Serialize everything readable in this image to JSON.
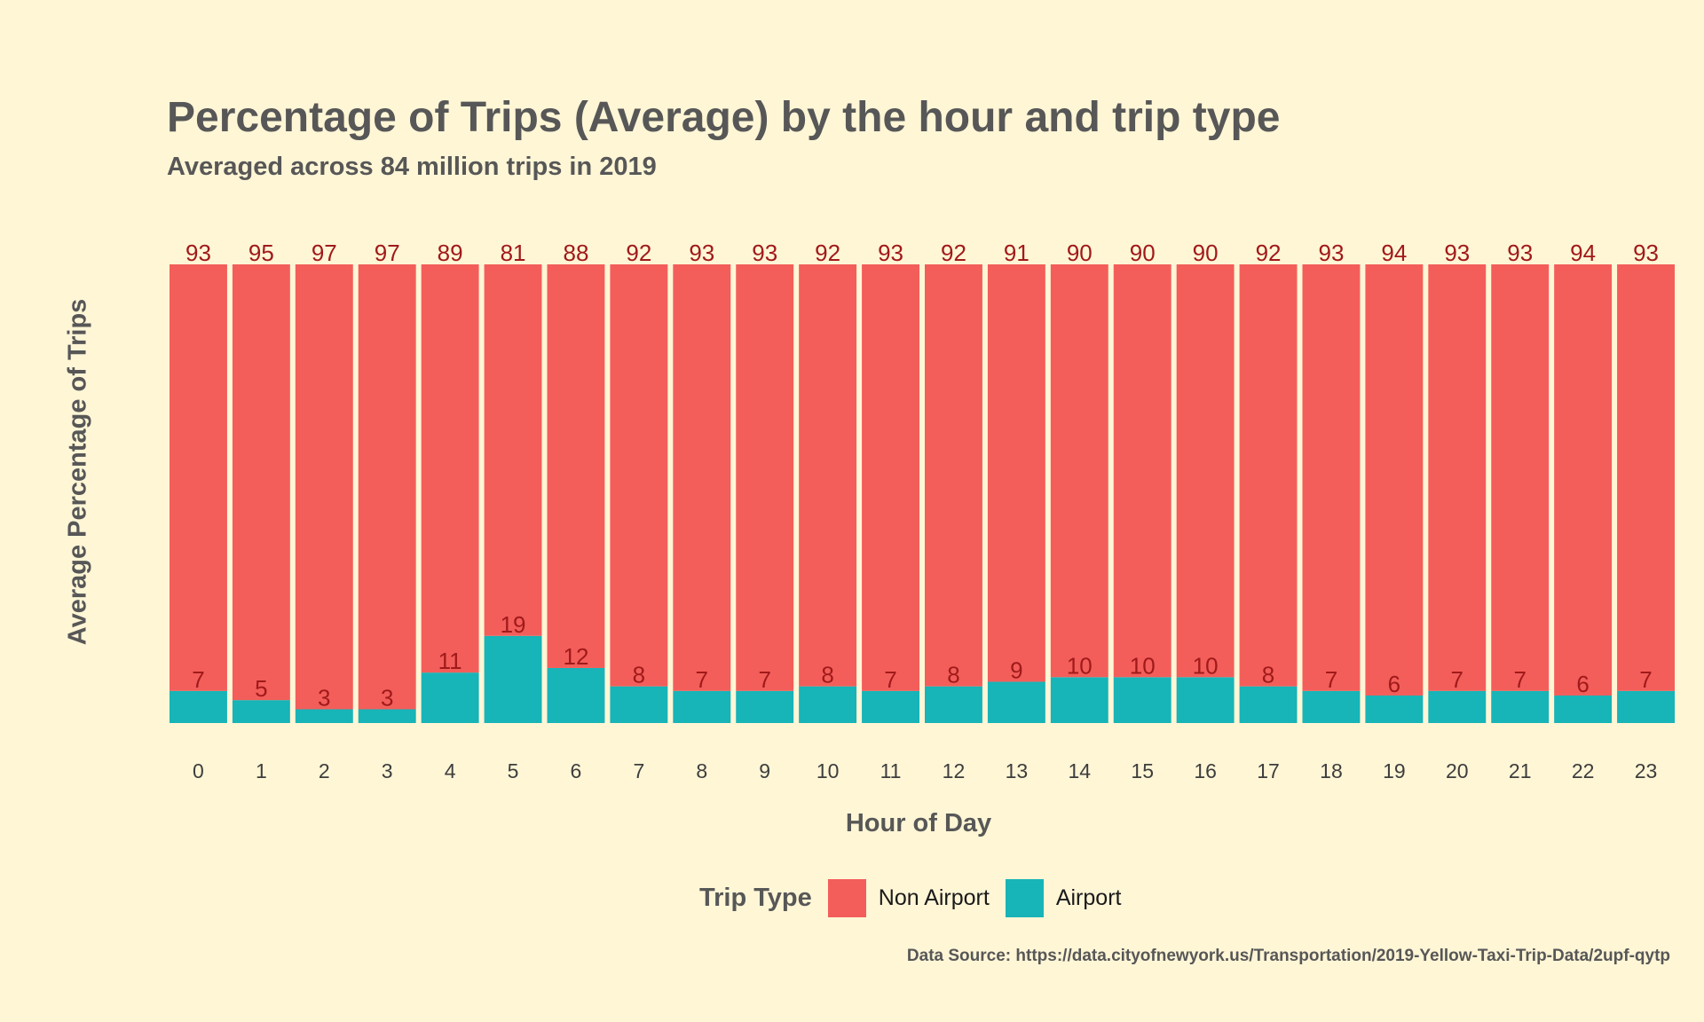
{
  "chart_data": {
    "type": "bar",
    "stacked": true,
    "title": "Percentage of Trips (Average) by the hour and trip type",
    "subtitle": "Averaged across 84 million trips in 2019",
    "xlabel": "Hour of Day",
    "ylabel": "Average Percentage of Trips",
    "ylim": [
      0,
      100
    ],
    "grid": false,
    "categories": [
      "0",
      "1",
      "2",
      "3",
      "4",
      "5",
      "6",
      "7",
      "8",
      "9",
      "10",
      "11",
      "12",
      "13",
      "14",
      "15",
      "16",
      "17",
      "18",
      "19",
      "20",
      "21",
      "22",
      "23"
    ],
    "series": [
      {
        "name": "Non Airport",
        "color": "#f35e5a",
        "values": [
          93,
          95,
          97,
          97,
          89,
          81,
          88,
          92,
          93,
          93,
          92,
          93,
          92,
          91,
          90,
          90,
          90,
          92,
          93,
          94,
          93,
          93,
          94,
          93
        ]
      },
      {
        "name": "Airport",
        "color": "#17b4b8",
        "values": [
          7,
          5,
          3,
          3,
          11,
          19,
          12,
          8,
          7,
          7,
          8,
          7,
          8,
          9,
          10,
          10,
          10,
          8,
          7,
          6,
          7,
          7,
          6,
          7
        ]
      }
    ],
    "legend": {
      "title": "Trip Type",
      "position": "bottom"
    },
    "label_color": "#a01a1a",
    "caption": "Data Source: https://data.cityofnewyork.us/Transportation/2019-Yellow-Taxi-Trip-Data/2upf-qytp"
  }
}
